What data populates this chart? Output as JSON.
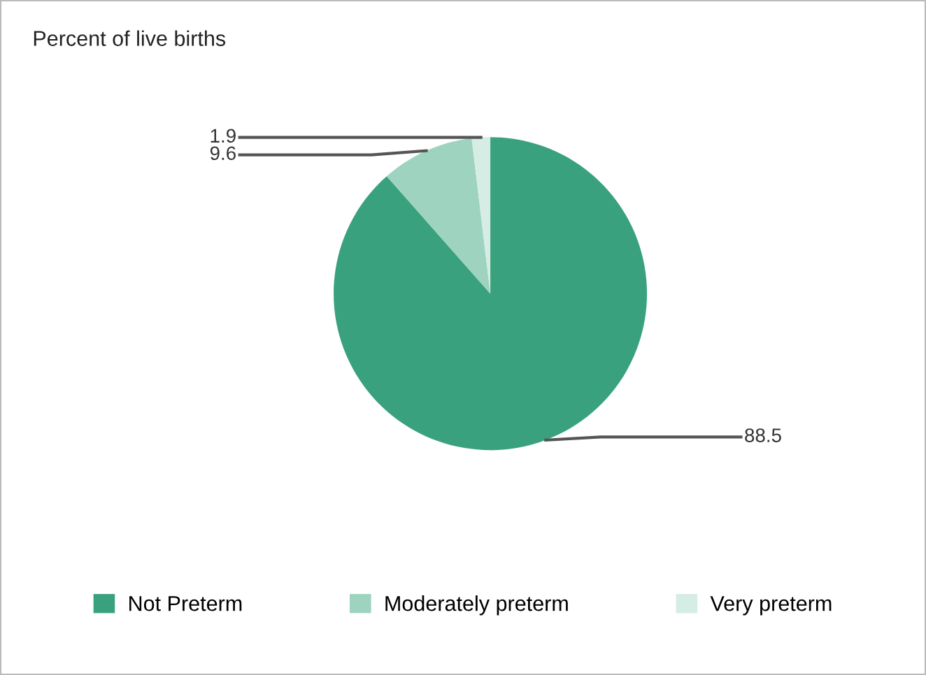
{
  "chart_data": {
    "type": "pie",
    "title": "Percent of live births",
    "categories": [
      "Not Preterm",
      "Moderately preterm",
      "Very preterm"
    ],
    "values": [
      88.5,
      9.6,
      1.9
    ],
    "colors": [
      "#3aa17e",
      "#9dd3bf",
      "#d5ede4"
    ],
    "data_labels": true,
    "legend": "bottom"
  }
}
